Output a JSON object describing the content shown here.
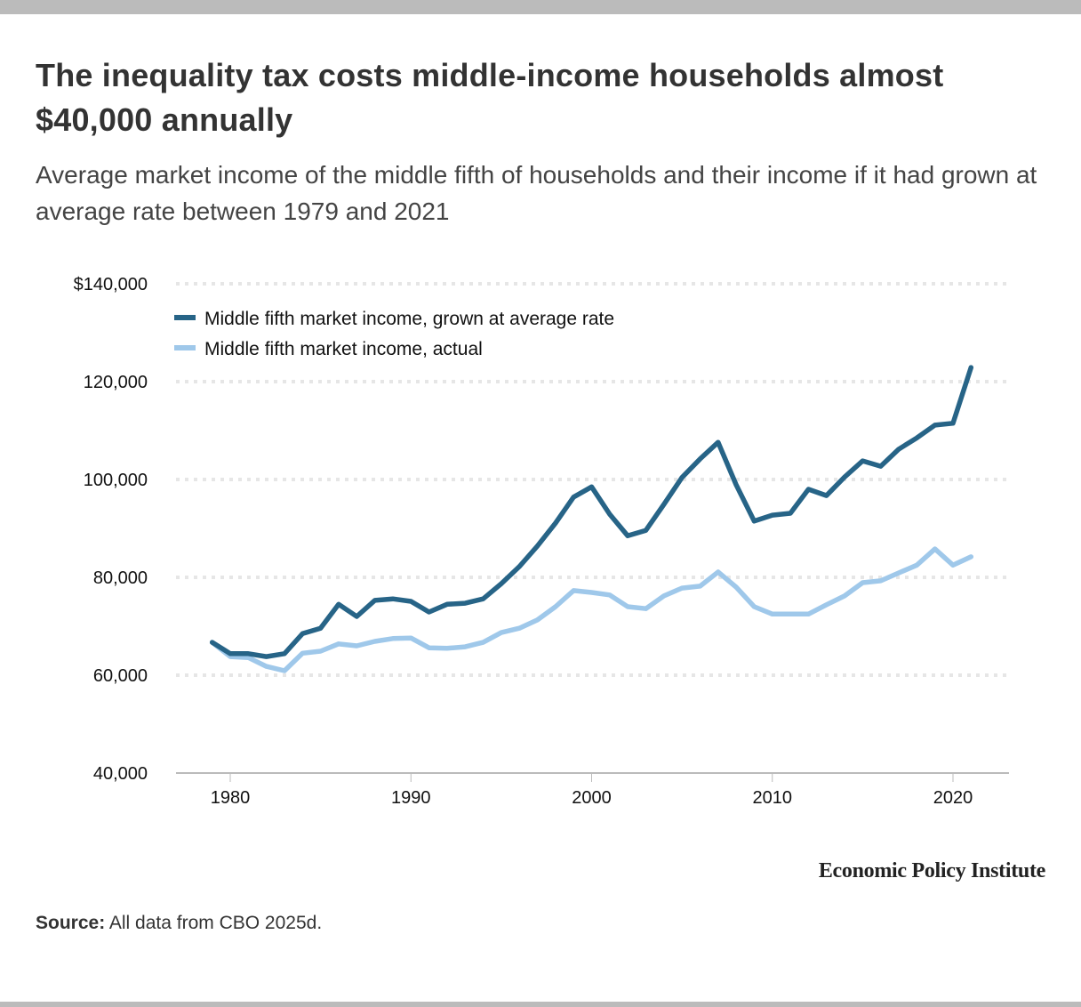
{
  "title": "The inequality tax costs middle-income households almost $40,000 annually",
  "subtitle": "Average market income of the middle fifth of households and their income if it had grown at average rate between 1979 and 2021",
  "brand": "Economic Policy Institute",
  "source": {
    "label": "Source:",
    "text": " All data from CBO 2025d."
  },
  "colors": {
    "grown": "#276487",
    "actual": "#9fc8ea",
    "grid": "#e6e6e6",
    "axis": "#bbbbbb",
    "frame": "#bbbbbb"
  },
  "chart_data": {
    "type": "line",
    "title": "The inequality tax costs middle-income households almost $40,000 annually",
    "subtitle": "Average market income of the middle fifth of households and their income if it had grown at average rate between 1979 and 2021",
    "xlabel": "",
    "ylabel": "",
    "xlim": [
      1977,
      2023
    ],
    "ylim": [
      40000,
      140000
    ],
    "grid": true,
    "legend_position": "top-left",
    "y_ticks": [
      {
        "value": 140000,
        "label": "$140,000"
      },
      {
        "value": 120000,
        "label": "120,000"
      },
      {
        "value": 100000,
        "label": "100,000"
      },
      {
        "value": 80000,
        "label": "80,000"
      },
      {
        "value": 60000,
        "label": "60,000"
      },
      {
        "value": 40000,
        "label": "40,000"
      }
    ],
    "x_ticks": [
      {
        "value": 1980,
        "label": "1980"
      },
      {
        "value": 1990,
        "label": "1990"
      },
      {
        "value": 2000,
        "label": "2000"
      },
      {
        "value": 2010,
        "label": "2010"
      },
      {
        "value": 2020,
        "label": "2020"
      }
    ],
    "x": [
      1979,
      1980,
      1981,
      1982,
      1983,
      1984,
      1985,
      1986,
      1987,
      1988,
      1989,
      1990,
      1991,
      1992,
      1993,
      1994,
      1995,
      1996,
      1997,
      1998,
      1999,
      2000,
      2001,
      2002,
      2003,
      2004,
      2005,
      2006,
      2007,
      2008,
      2009,
      2010,
      2011,
      2012,
      2013,
      2014,
      2015,
      2016,
      2017,
      2018,
      2019,
      2020,
      2021
    ],
    "series": [
      {
        "name": "Middle fifth market income, grown at average rate",
        "color": "#276487",
        "values": [
          66700,
          64400,
          64400,
          63800,
          64400,
          68500,
          69600,
          74500,
          72000,
          75300,
          75600,
          75100,
          72900,
          74500,
          74700,
          75600,
          78700,
          82200,
          86400,
          91100,
          96400,
          98500,
          92900,
          88500,
          89600,
          94900,
          100400,
          104200,
          107600,
          98900,
          91500,
          92700,
          93100,
          98000,
          96700,
          100500,
          103800,
          102700,
          106200,
          108500,
          111100,
          111500,
          122900
        ]
      },
      {
        "name": "Middle fifth market income, actual",
        "color": "#9fc8ea",
        "values": [
          66700,
          63800,
          63600,
          61800,
          60900,
          64500,
          64900,
          66400,
          66000,
          66900,
          67500,
          67600,
          65600,
          65500,
          65800,
          66700,
          68700,
          69600,
          71300,
          74000,
          77300,
          76900,
          76400,
          74000,
          73600,
          76200,
          77800,
          78200,
          81100,
          78000,
          74000,
          72500,
          72500,
          72500,
          74400,
          76200,
          78900,
          79300,
          80900,
          82500,
          85800,
          82500,
          84200
        ]
      }
    ]
  }
}
